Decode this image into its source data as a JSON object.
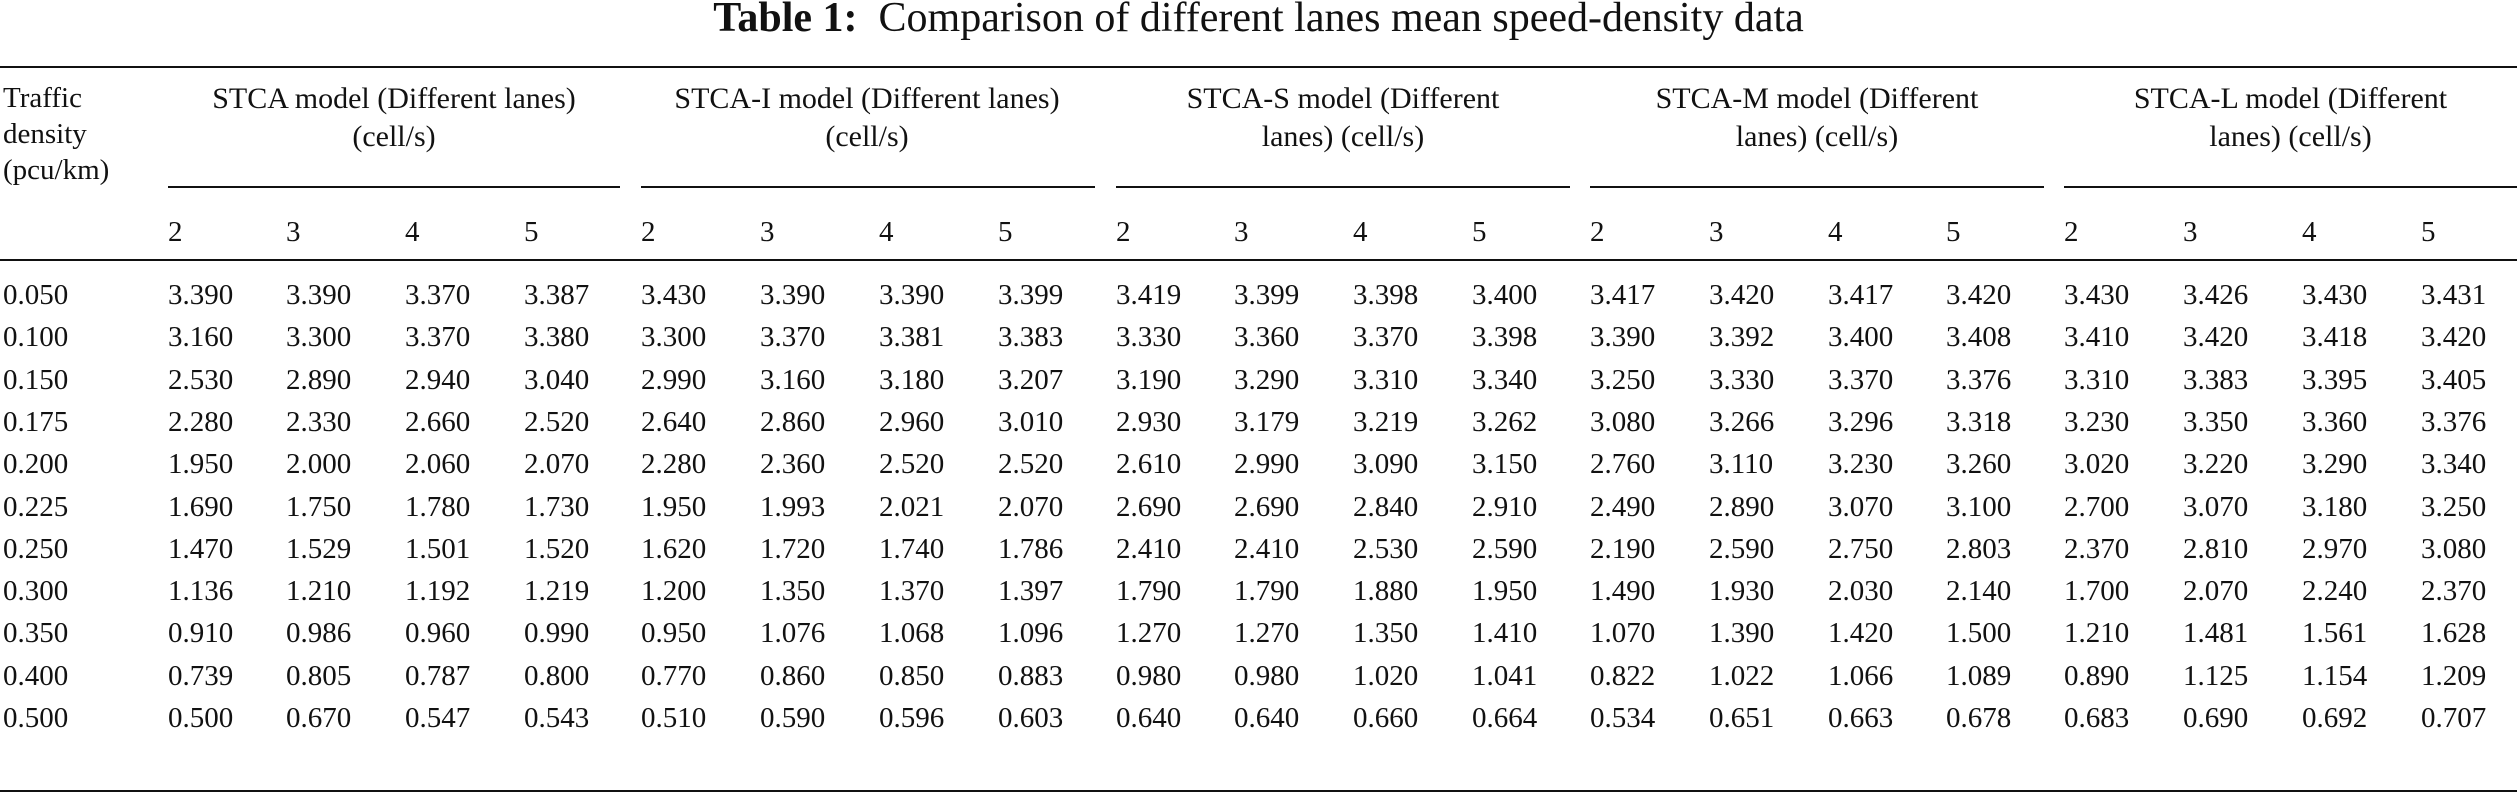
{
  "caption": {
    "label": "Table 1:",
    "text": "Comparison of different lanes mean speed-density data"
  },
  "header": {
    "density_col": [
      "Traffic",
      "density",
      "(pcu/km)"
    ],
    "groups": [
      {
        "title_lines": [
          "STCA model (Different lanes)",
          "(cell/s)"
        ],
        "lanes": [
          "2",
          "3",
          "4",
          "5"
        ]
      },
      {
        "title_lines": [
          "STCA-I model (Different lanes)",
          "(cell/s)"
        ],
        "lanes": [
          "2",
          "3",
          "4",
          "5"
        ]
      },
      {
        "title_lines": [
          "STCA-S model (Different",
          "lanes) (cell/s)"
        ],
        "lanes": [
          "2",
          "3",
          "4",
          "5"
        ]
      },
      {
        "title_lines": [
          "STCA-M model (Different",
          "lanes) (cell/s)"
        ],
        "lanes": [
          "2",
          "3",
          "4",
          "5"
        ]
      },
      {
        "title_lines": [
          "STCA-L model (Different",
          "lanes) (cell/s)"
        ],
        "lanes": [
          "2",
          "3",
          "4",
          "5"
        ]
      }
    ]
  },
  "rows": [
    {
      "density": "0.050",
      "values": [
        "3.390",
        "3.390",
        "3.370",
        "3.387",
        "3.430",
        "3.390",
        "3.390",
        "3.399",
        "3.419",
        "3.399",
        "3.398",
        "3.400",
        "3.417",
        "3.420",
        "3.417",
        "3.420",
        "3.430",
        "3.426",
        "3.430",
        "3.431"
      ]
    },
    {
      "density": "0.100",
      "values": [
        "3.160",
        "3.300",
        "3.370",
        "3.380",
        "3.300",
        "3.370",
        "3.381",
        "3.383",
        "3.330",
        "3.360",
        "3.370",
        "3.398",
        "3.390",
        "3.392",
        "3.400",
        "3.408",
        "3.410",
        "3.420",
        "3.418",
        "3.420"
      ]
    },
    {
      "density": "0.150",
      "values": [
        "2.530",
        "2.890",
        "2.940",
        "3.040",
        "2.990",
        "3.160",
        "3.180",
        "3.207",
        "3.190",
        "3.290",
        "3.310",
        "3.340",
        "3.250",
        "3.330",
        "3.370",
        "3.376",
        "3.310",
        "3.383",
        "3.395",
        "3.405"
      ]
    },
    {
      "density": "0.175",
      "values": [
        "2.280",
        "2.330",
        "2.660",
        "2.520",
        "2.640",
        "2.860",
        "2.960",
        "3.010",
        "2.930",
        "3.179",
        "3.219",
        "3.262",
        "3.080",
        "3.266",
        "3.296",
        "3.318",
        "3.230",
        "3.350",
        "3.360",
        "3.376"
      ]
    },
    {
      "density": "0.200",
      "values": [
        "1.950",
        "2.000",
        "2.060",
        "2.070",
        "2.280",
        "2.360",
        "2.520",
        "2.520",
        "2.610",
        "2.990",
        "3.090",
        "3.150",
        "2.760",
        "3.110",
        "3.230",
        "3.260",
        "3.020",
        "3.220",
        "3.290",
        "3.340"
      ]
    },
    {
      "density": "0.225",
      "values": [
        "1.690",
        "1.750",
        "1.780",
        "1.730",
        "1.950",
        "1.993",
        "2.021",
        "2.070",
        "2.690",
        "2.690",
        "2.840",
        "2.910",
        "2.490",
        "2.890",
        "3.070",
        "3.100",
        "2.700",
        "3.070",
        "3.180",
        "3.250"
      ]
    },
    {
      "density": "0.250",
      "values": [
        "1.470",
        "1.529",
        "1.501",
        "1.520",
        "1.620",
        "1.720",
        "1.740",
        "1.786",
        "2.410",
        "2.410",
        "2.530",
        "2.590",
        "2.190",
        "2.590",
        "2.750",
        "2.803",
        "2.370",
        "2.810",
        "2.970",
        "3.080"
      ]
    },
    {
      "density": "0.300",
      "values": [
        "1.136",
        "1.210",
        "1.192",
        "1.219",
        "1.200",
        "1.350",
        "1.370",
        "1.397",
        "1.790",
        "1.790",
        "1.880",
        "1.950",
        "1.490",
        "1.930",
        "2.030",
        "2.140",
        "1.700",
        "2.070",
        "2.240",
        "2.370"
      ]
    },
    {
      "density": "0.350",
      "values": [
        "0.910",
        "0.986",
        "0.960",
        "0.990",
        "0.950",
        "1.076",
        "1.068",
        "1.096",
        "1.270",
        "1.270",
        "1.350",
        "1.410",
        "1.070",
        "1.390",
        "1.420",
        "1.500",
        "1.210",
        "1.481",
        "1.561",
        "1.628"
      ]
    },
    {
      "density": "0.400",
      "values": [
        "0.739",
        "0.805",
        "0.787",
        "0.800",
        "0.770",
        "0.860",
        "0.850",
        "0.883",
        "0.980",
        "0.980",
        "1.020",
        "1.041",
        "0.822",
        "1.022",
        "1.066",
        "1.089",
        "0.890",
        "1.125",
        "1.154",
        "1.209"
      ]
    },
    {
      "density": "0.500",
      "values": [
        "0.500",
        "0.670",
        "0.547",
        "0.543",
        "0.510",
        "0.590",
        "0.596",
        "0.603",
        "0.640",
        "0.640",
        "0.660",
        "0.664",
        "0.534",
        "0.651",
        "0.663",
        "0.678",
        "0.683",
        "0.690",
        "0.692",
        "0.707"
      ]
    }
  ]
}
